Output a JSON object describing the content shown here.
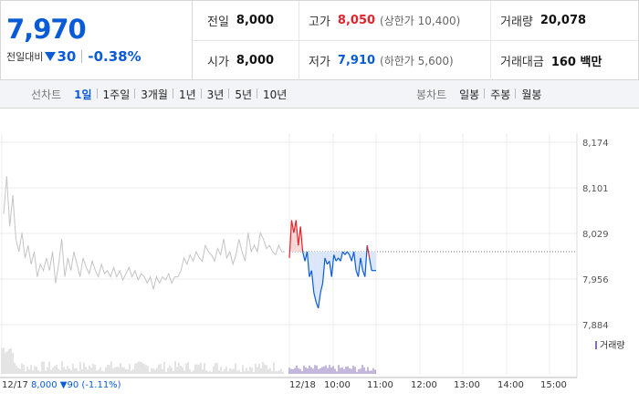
{
  "summary": {
    "price": "7,970",
    "change_label": "전일대비",
    "change_value": "30",
    "change_pct": "-0.38%",
    "prev_close": {
      "label": "전일",
      "value": "8,000"
    },
    "open": {
      "label": "시가",
      "value": "8,000"
    },
    "high": {
      "label": "고가",
      "value": "8,050",
      "sub": "(상한가 10,400)"
    },
    "low": {
      "label": "저가",
      "value": "7,910",
      "sub": "(하한가 5,600)"
    },
    "volume": {
      "label": "거래량",
      "value": "20,078"
    },
    "amount": {
      "label": "거래대금",
      "value": "160 백만"
    }
  },
  "tabs": {
    "line_title": "선차트",
    "line_items": [
      "1일",
      "1주일",
      "3개월",
      "1년",
      "3년",
      "5년",
      "10년"
    ],
    "line_active": "1일",
    "candle_title": "봉차트",
    "candle_items": [
      "일봉",
      "주봉",
      "월봉"
    ]
  },
  "colors": {
    "up": "#e0242b",
    "down": "#0a5bd6",
    "prev_day_line": "#c4c4c4",
    "fill_up": "#f7d6d6",
    "fill_down": "#d9e6f7"
  },
  "chart_data": {
    "type": "line",
    "y_ticks": [
      "8,174",
      "8,101",
      "8,029",
      "7,956",
      "7,884"
    ],
    "ylim": [
      7884,
      8174
    ],
    "x_labels": [
      "12/18",
      "10:00",
      "11:00",
      "12:00",
      "13:00",
      "14:00",
      "15:00"
    ],
    "reference_price": 8000,
    "prev_day_label": "12/17",
    "prev_day_summary": "8,000 ▼90 (-1.11%)",
    "volume_legend": "거래량",
    "series": [
      {
        "values": [
          8060,
          8120,
          8040,
          8090,
          8020,
          8000,
          8030,
          7990,
          8010,
          7980,
          8000,
          7960,
          7980,
          7970,
          7990,
          7970,
          8000,
          7950,
          7980,
          8020,
          7960,
          7990,
          7970,
          8000,
          7980,
          7960,
          7990,
          7975,
          7965,
          7985,
          7970,
          7960,
          7980,
          7965,
          7970,
          7960,
          7975,
          7960,
          7970,
          7955,
          7965,
          7975,
          7960,
          7970,
          7955,
          7965,
          7960,
          7950,
          7960,
          7940,
          7960,
          7950,
          7960,
          7955,
          7965,
          7950,
          7960,
          7960,
          7970,
          7990,
          7980,
          7995,
          7985,
          8000,
          7990,
          7985,
          8010,
          8000,
          7995,
          7985,
          8005,
          7995,
          8020,
          7990,
          8000,
          7980,
          7995,
          8020,
          8000,
          7985,
          8030,
          8000,
          8010,
          8000,
          8030,
          8020,
          8005,
          8010,
          8000,
          7995,
          8010,
          8000,
          8000
        ]
      },
      {
        "values": [
          7990,
          8050,
          8030,
          8050,
          8010,
          8040,
          8000,
          7985,
          8000,
          7960,
          7970,
          7935,
          7920,
          7910,
          7935,
          7950,
          7990,
          7980,
          7985,
          7960,
          7995,
          7985,
          7990,
          7985,
          8000,
          7995,
          8000,
          7995,
          7985,
          8000,
          7970,
          7960,
          7990,
          7970,
          7960,
          8010,
          7990,
          7970,
          7970,
          7970
        ]
      }
    ]
  }
}
